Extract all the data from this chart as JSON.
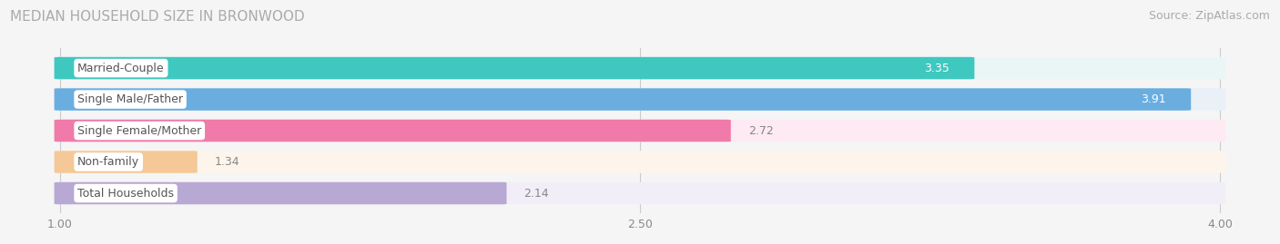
{
  "title": "MEDIAN HOUSEHOLD SIZE IN BRONWOOD",
  "source": "Source: ZipAtlas.com",
  "categories": [
    "Married-Couple",
    "Single Male/Father",
    "Single Female/Mother",
    "Non-family",
    "Total Households"
  ],
  "values": [
    3.35,
    3.91,
    2.72,
    1.34,
    2.14
  ],
  "bar_colors": [
    "#3ec8c0",
    "#6aaee0",
    "#f07aaa",
    "#f5c897",
    "#b8a8d4"
  ],
  "bar_bg_colors": [
    "#eaf6f6",
    "#eaf0f8",
    "#fdeaf3",
    "#fdf5ec",
    "#f2eef8"
  ],
  "xmin": 1.0,
  "xmax": 4.0,
  "xticks": [
    1.0,
    2.5,
    4.0
  ],
  "label_color_inside": "#ffffff",
  "label_color_outside": "#888888",
  "title_fontsize": 11,
  "source_fontsize": 9,
  "bar_label_fontsize": 9,
  "category_fontsize": 9,
  "tick_fontsize": 9,
  "background_color": "#f5f5f5",
  "value_inside_threshold": 2.8
}
